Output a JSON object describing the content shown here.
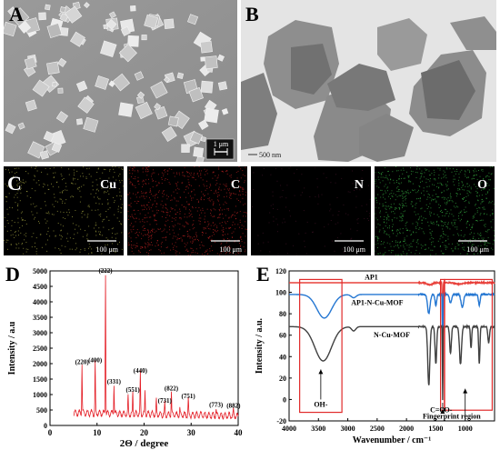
{
  "figure": {
    "panels": {
      "A": {
        "label": "A",
        "scalebar_text": "1 μm"
      },
      "B": {
        "label": "B",
        "scalebar_text": "500 nm"
      },
      "C": {
        "label": "C",
        "maps": [
          {
            "element": "Cu",
            "scale": "100 μm",
            "color": "#c8c850"
          },
          {
            "element": "C",
            "scale": "100 μm",
            "color": "#e02828"
          },
          {
            "element": "N",
            "scale": "100 μm",
            "color": "#6a2040"
          },
          {
            "element": "O",
            "scale": "100 μm",
            "color": "#3fcf4f"
          }
        ]
      },
      "D": {
        "label": "D"
      },
      "E": {
        "label": "E"
      }
    }
  },
  "chart_data": [
    {
      "panel": "D",
      "type": "line",
      "title": "",
      "xlabel": "2Θ / degree",
      "ylabel": "Intensity / a.u",
      "xlim": [
        0,
        40
      ],
      "ylim": [
        0,
        5000
      ],
      "xticks": [
        0,
        10,
        20,
        30,
        40
      ],
      "yticks": [
        0,
        500,
        1000,
        1500,
        2000,
        2500,
        3000,
        3500,
        4000,
        4500,
        5000
      ],
      "series_color": "#e41e26",
      "peaks": [
        {
          "x": 6.8,
          "y": 1900,
          "label": "(220)"
        },
        {
          "x": 9.6,
          "y": 1950,
          "label": "(400)"
        },
        {
          "x": 11.8,
          "y": 4850,
          "label": "(222)"
        },
        {
          "x": 13.6,
          "y": 1260,
          "label": "(331)"
        },
        {
          "x": 16.6,
          "y": 830
        },
        {
          "x": 17.6,
          "y": 1000,
          "label": "(551)"
        },
        {
          "x": 19.2,
          "y": 1620,
          "label": "(440)"
        },
        {
          "x": 20.2,
          "y": 1050
        },
        {
          "x": 22.6,
          "y": 750
        },
        {
          "x": 24.4,
          "y": 650,
          "label": "(731)"
        },
        {
          "x": 25.8,
          "y": 1050,
          "label": "(822)"
        },
        {
          "x": 27.6,
          "y": 500
        },
        {
          "x": 29.4,
          "y": 800,
          "label": "(751)"
        },
        {
          "x": 32.0,
          "y": 350
        },
        {
          "x": 35.3,
          "y": 520,
          "label": "(773)"
        },
        {
          "x": 39.0,
          "y": 480,
          "label": "(882)"
        }
      ]
    },
    {
      "panel": "E",
      "type": "line",
      "title": "",
      "xlabel": "Wavenumber / cm⁻¹",
      "ylabel": "Intensity / a.u.",
      "xlim": [
        4000,
        500
      ],
      "ylim": [
        -20,
        120
      ],
      "xticks": [
        4000,
        3500,
        3000,
        2500,
        2000,
        1500,
        1000
      ],
      "yticks": [
        -20,
        0,
        20,
        40,
        60,
        80,
        100,
        120
      ],
      "series": [
        {
          "name": "AP1",
          "color": "#e8403a"
        },
        {
          "name": "AP1-N-Cu-MOF",
          "color": "#2577d2"
        },
        {
          "name": "N-Cu-MOF",
          "color": "#404040"
        }
      ],
      "annotations": [
        "OH-",
        "C=O",
        "O-",
        "Fingerprint region"
      ]
    }
  ]
}
